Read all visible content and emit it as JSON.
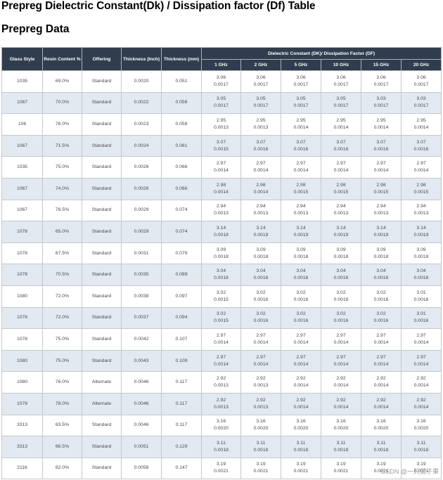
{
  "page_title": "Prepreg Dielectric Constant(Dk) / Dissipation factor (Df) Table",
  "section_title": "Prepreg Data",
  "table": {
    "headers": {
      "glass_style": "Glass Style",
      "resin_content": "Resin Content %",
      "offering": "Offering",
      "thickness_inch": "Thickness (Inch)",
      "thickness_mm": "Thickness (mm)",
      "dk_df_group": "Dielectric Constant (DK)/ Dissipation Factor (DF)",
      "frequencies": [
        "1 GHz",
        "2 GHz",
        "5 GHz",
        "10 GHz",
        "15 GHz",
        "20 GHz"
      ]
    },
    "rows": [
      {
        "glass": "1035",
        "resin": "69.0%",
        "offering": "Standard",
        "inch": "0.0020",
        "mm": "0.051",
        "vals": [
          [
            "3.06",
            "0.0017"
          ],
          [
            "3.06",
            "0.0017"
          ],
          [
            "3.06",
            "0.0017"
          ],
          [
            "3.06",
            "0.0017"
          ],
          [
            "3.06",
            "0.0017"
          ],
          [
            "3.06",
            "0.0017"
          ]
        ]
      },
      {
        "glass": "1067",
        "resin": "70.0%",
        "offering": "Standard",
        "inch": "0.0022",
        "mm": "0.056",
        "vals": [
          [
            "3.05",
            "0.0017"
          ],
          [
            "3.05",
            "0.0017"
          ],
          [
            "3.05",
            "0.0017"
          ],
          [
            "3.05",
            "0.0017"
          ],
          [
            "3.03",
            "0.0017"
          ],
          [
            "3.03",
            "0.0017"
          ]
        ]
      },
      {
        "glass": "106",
        "resin": "76.0%",
        "offering": "Standard",
        "inch": "0.0023",
        "mm": "0.058",
        "vals": [
          [
            "2.95",
            "0.0013"
          ],
          [
            "2.95",
            "0.0013"
          ],
          [
            "2.95",
            "0.0014"
          ],
          [
            "2.95",
            "0.0014"
          ],
          [
            "2.95",
            "0.0014"
          ],
          [
            "2.95",
            "0.0014"
          ]
        ]
      },
      {
        "glass": "1067",
        "resin": "71.5%",
        "offering": "Standard",
        "inch": "0.0024",
        "mm": "0.061",
        "vals": [
          [
            "3.07",
            "0.0015"
          ],
          [
            "3.07",
            "0.0016"
          ],
          [
            "3.07",
            "0.0016"
          ],
          [
            "3.07",
            "0.0016"
          ],
          [
            "3.07",
            "0.0016"
          ],
          [
            "3.07",
            "0.0016"
          ]
        ]
      },
      {
        "glass": "1035",
        "resin": "75.0%",
        "offering": "Standard",
        "inch": "0.0026",
        "mm": "0.066",
        "vals": [
          [
            "2.97",
            "0.0014"
          ],
          [
            "2.97",
            "0.0014"
          ],
          [
            "2.97",
            "0.0014"
          ],
          [
            "2.97",
            "0.0014"
          ],
          [
            "2.97",
            "0.0014"
          ],
          [
            "2.97",
            "0.0014"
          ]
        ]
      },
      {
        "glass": "1067",
        "resin": "74.0%",
        "offering": "Standard",
        "inch": "0.0026",
        "mm": "0.066",
        "vals": [
          [
            "2.98",
            "0.0014"
          ],
          [
            "2.98",
            "0.0014"
          ],
          [
            "2.98",
            "0.0015"
          ],
          [
            "2.98",
            "0.0015"
          ],
          [
            "2.98",
            "0.0015"
          ],
          [
            "2.98",
            "0.0015"
          ]
        ]
      },
      {
        "glass": "1067",
        "resin": "76.5%",
        "offering": "Standard",
        "inch": "0.0029",
        "mm": "0.074",
        "vals": [
          [
            "2.94",
            "0.0013"
          ],
          [
            "2.94",
            "0.0013"
          ],
          [
            "2.94",
            "0.0013"
          ],
          [
            "2.94",
            "0.0013"
          ],
          [
            "2.94",
            "0.0013"
          ],
          [
            "2.94",
            "0.0013"
          ]
        ]
      },
      {
        "glass": "1078",
        "resin": "65.0%",
        "offering": "Standard",
        "inch": "0.0029",
        "mm": "0.074",
        "vals": [
          [
            "3.14",
            "0.0018"
          ],
          [
            "3.14",
            "0.0019"
          ],
          [
            "3.14",
            "0.0019"
          ],
          [
            "3.14",
            "0.0019"
          ],
          [
            "3.14",
            "0.0019"
          ],
          [
            "3.14",
            "0.0019"
          ]
        ]
      },
      {
        "glass": "1078",
        "resin": "67.5%",
        "offering": "Standard",
        "inch": "0.0031",
        "mm": "0.079",
        "vals": [
          [
            "3.09",
            "0.0018"
          ],
          [
            "3.09",
            "0.0018"
          ],
          [
            "3.09",
            "0.0018"
          ],
          [
            "3.09",
            "0.0018"
          ],
          [
            "3.09",
            "0.0018"
          ],
          [
            "3.09",
            "0.0018"
          ]
        ]
      },
      {
        "glass": "1078",
        "resin": "70.5%",
        "offering": "Standard",
        "inch": "0.0035",
        "mm": "0.089",
        "vals": [
          [
            "3.04",
            "0.0016"
          ],
          [
            "3.04",
            "0.0016"
          ],
          [
            "3.04",
            "0.0016"
          ],
          [
            "3.04",
            "0.0016"
          ],
          [
            "3.04",
            "0.0016"
          ],
          [
            "3.04",
            "0.0016"
          ]
        ]
      },
      {
        "glass": "1080",
        "resin": "72.0%",
        "offering": "Standard",
        "inch": "0.0038",
        "mm": "0.097",
        "vals": [
          [
            "3.02",
            "0.0015"
          ],
          [
            "3.02",
            "0.0016"
          ],
          [
            "3.02",
            "0.0016"
          ],
          [
            "3.02",
            "0.0016"
          ],
          [
            "3.02",
            "0.0016"
          ],
          [
            "3.01",
            "0.0016"
          ]
        ]
      },
      {
        "glass": "1078",
        "resin": "72.0%",
        "offering": "Standard",
        "inch": "0.0037",
        "mm": "0.094",
        "vals": [
          [
            "3.02",
            "0.0015"
          ],
          [
            "3.02",
            "0.0016"
          ],
          [
            "3.02",
            "0.0016"
          ],
          [
            "3.02",
            "0.0016"
          ],
          [
            "3.02",
            "0.0016"
          ],
          [
            "3.01",
            "0.0016"
          ]
        ]
      },
      {
        "glass": "1078",
        "resin": "75.0%",
        "offering": "Standard",
        "inch": "0.0042",
        "mm": "0.107",
        "vals": [
          [
            "2.97",
            "0.0014"
          ],
          [
            "2.97",
            "0.0014"
          ],
          [
            "2.97",
            "0.0014"
          ],
          [
            "2.97",
            "0.0014"
          ],
          [
            "2.97",
            "0.0014"
          ],
          [
            "2.97",
            "0.0014"
          ]
        ]
      },
      {
        "glass": "1080",
        "resin": "75.0%",
        "offering": "Standard",
        "inch": "0.0043",
        "mm": "0.109",
        "vals": [
          [
            "2.97",
            "0.0014"
          ],
          [
            "2.97",
            "0.0014"
          ],
          [
            "2.97",
            "0.0014"
          ],
          [
            "2.97",
            "0.0014"
          ],
          [
            "2.97",
            "0.0014"
          ],
          [
            "2.97",
            "0.0014"
          ]
        ]
      },
      {
        "glass": "1080",
        "resin": "76.0%",
        "offering": "Alternate",
        "inch": "0.0046",
        "mm": "0.117",
        "vals": [
          [
            "2.92",
            "0.0013"
          ],
          [
            "2.92",
            "0.0013"
          ],
          [
            "2.92",
            "0.0014"
          ],
          [
            "2.92",
            "0.0014"
          ],
          [
            "2.92",
            "0.0014"
          ],
          [
            "2.92",
            "0.0014"
          ]
        ]
      },
      {
        "glass": "1078",
        "resin": "78.0%",
        "offering": "Alternate",
        "inch": "0.0046",
        "mm": "0.117",
        "vals": [
          [
            "2.92",
            "0.0013"
          ],
          [
            "2.92",
            "0.0013"
          ],
          [
            "2.92",
            "0.0014"
          ],
          [
            "2.92",
            "0.0014"
          ],
          [
            "2.92",
            "0.0014"
          ],
          [
            "2.92",
            "0.0014"
          ]
        ]
      },
      {
        "glass": "3313",
        "resin": "63.5%",
        "offering": "Standard",
        "inch": "0.0046",
        "mm": "0.117",
        "vals": [
          [
            "3.16",
            "0.0020"
          ],
          [
            "3.16",
            "0.0020"
          ],
          [
            "3.16",
            "0.0020"
          ],
          [
            "3.16",
            "0.0020"
          ],
          [
            "3.16",
            "0.0020"
          ],
          [
            "3.16",
            "0.0020"
          ]
        ]
      },
      {
        "glass": "3313",
        "resin": "66.5%",
        "offering": "Standard",
        "inch": "0.0051",
        "mm": "0.129",
        "vals": [
          [
            "3.11",
            "0.0018"
          ],
          [
            "3.11",
            "0.0018"
          ],
          [
            "3.11",
            "0.0018"
          ],
          [
            "3.11",
            "0.0018"
          ],
          [
            "3.11",
            "0.0018"
          ],
          [
            "3.11",
            "0.0018"
          ]
        ]
      },
      {
        "glass": "2116",
        "resin": "62.0%",
        "offering": "Standard",
        "inch": "0.0058",
        "mm": "0.147",
        "vals": [
          [
            "3.19",
            "0.0021"
          ],
          [
            "3.19",
            "0.0021"
          ],
          [
            "3.19",
            "0.0021"
          ],
          [
            "3.19",
            "0.0021"
          ],
          [
            "3.19",
            "0.0021"
          ],
          [
            "3.19",
            "0.0021"
          ]
        ]
      }
    ]
  },
  "watermark": "CSDN @一只混子果"
}
